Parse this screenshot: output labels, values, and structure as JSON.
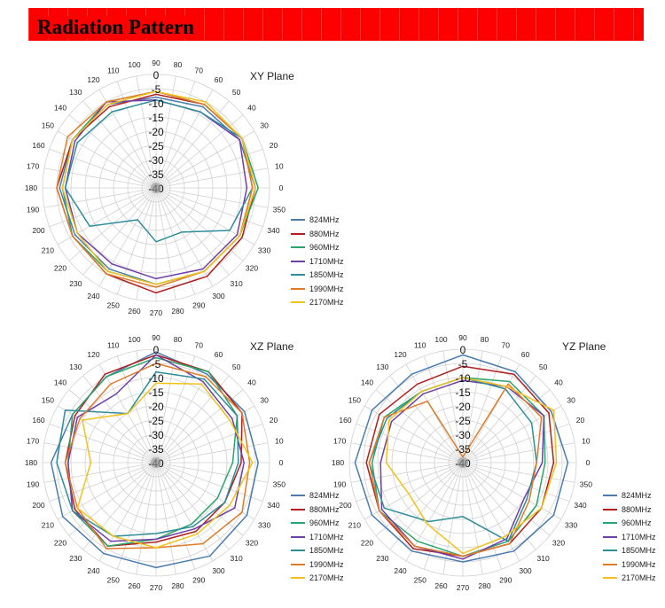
{
  "banner": {
    "title": "Radiation Pattern"
  },
  "legend": [
    {
      "label": "824MHz",
      "color": "#4a7cb0"
    },
    {
      "label": "880MHz",
      "color": "#b11f1f"
    },
    {
      "label": "960MHz",
      "color": "#2aa56b"
    },
    {
      "label": "1710MHz",
      "color": "#6f3fa8"
    },
    {
      "label": "1850MHz",
      "color": "#2d8e9a"
    },
    {
      "label": "1990MHz",
      "color": "#e07b2a"
    },
    {
      "label": "2170MHz",
      "color": "#f2c21b"
    }
  ],
  "chart_data": [
    {
      "type": "polar-line",
      "title": "XY  Plane",
      "r_range": [
        -40,
        0
      ],
      "r_ticks": [
        "0",
        "-5",
        "-10",
        "-15",
        "-20",
        "-25",
        "-30",
        "-35",
        "-40"
      ],
      "angle_ticks": [
        "0",
        "10",
        "20",
        "30",
        "40",
        "50",
        "60",
        "70",
        "80",
        "90",
        "100",
        "110",
        "120",
        "130",
        "140",
        "150",
        "160",
        "170",
        "180",
        "190",
        "200",
        "210",
        "220",
        "230",
        "240",
        "250",
        "260",
        "270",
        "280",
        "290",
        "300",
        "310",
        "320",
        "330",
        "340",
        "350"
      ],
      "angles": [
        0,
        30,
        60,
        90,
        120,
        150,
        180,
        210,
        240,
        270,
        300,
        330
      ],
      "series": [
        {
          "name": "824MHz",
          "values": [
            -5,
            -6,
            -7,
            -8,
            -6,
            -6,
            -6,
            -7,
            -7,
            -6,
            -6,
            -6
          ]
        },
        {
          "name": "880MHz",
          "values": [
            -5,
            -5,
            -6,
            -7,
            -7,
            -6,
            -5,
            -6,
            -5,
            -3,
            -4,
            -5
          ]
        },
        {
          "name": "960MHz",
          "values": [
            -4,
            -5,
            -6,
            -6,
            -5,
            -6,
            -7,
            -6,
            -6,
            -6,
            -6,
            -6
          ]
        },
        {
          "name": "1710MHz",
          "values": [
            -8,
            -6,
            -9,
            -9,
            -5,
            -7,
            -8,
            -8,
            -9,
            -8,
            -7,
            -7
          ]
        },
        {
          "name": "1850MHz",
          "values": [
            -6,
            -5,
            -9,
            -9,
            -9,
            -8,
            -8,
            -13,
            -27,
            -21,
            -22,
            -10
          ]
        },
        {
          "name": "1990MHz",
          "values": [
            -6,
            -5,
            -6,
            -6,
            -5,
            -4,
            -5,
            -6,
            -5,
            -5,
            -6,
            -6
          ]
        },
        {
          "name": "2170MHz",
          "values": [
            -5,
            -5,
            -5,
            -6,
            -6,
            -6,
            -7,
            -8,
            -6,
            -6,
            -6,
            -6
          ]
        }
      ]
    },
    {
      "type": "polar-line",
      "title": "XZ  Plane",
      "r_range": [
        -40,
        0
      ],
      "r_ticks": [
        "0",
        "-5",
        "-10",
        "-15",
        "-20",
        "-25",
        "-30",
        "-35",
        "-40"
      ],
      "angle_ticks": [
        "0",
        "10",
        "20",
        "30",
        "40",
        "50",
        "60",
        "70",
        "80",
        "90",
        "100",
        "110",
        "120",
        "130",
        "140",
        "150",
        "160",
        "170",
        "180",
        "190",
        "200",
        "210",
        "220",
        "230",
        "240",
        "250",
        "260",
        "270",
        "280",
        "290",
        "300",
        "310",
        "320",
        "330",
        "340",
        "350"
      ],
      "angles": [
        0,
        30,
        60,
        90,
        120,
        150,
        180,
        210,
        240,
        270,
        300,
        330
      ],
      "series": [
        {
          "name": "824MHz",
          "values": [
            -4,
            -4,
            -4,
            -1,
            -5,
            -6,
            -3,
            -2,
            -3,
            -3,
            -2,
            -3
          ]
        },
        {
          "name": "880MHz",
          "values": [
            -10,
            -5,
            -3,
            -2,
            -4,
            -7,
            -8,
            -7,
            -6,
            -12,
            -12,
            -12
          ]
        },
        {
          "name": "960MHz",
          "values": [
            -13,
            -7,
            -3,
            -3,
            -5,
            -6,
            -9,
            -6,
            -6,
            -13,
            -15,
            -15
          ]
        },
        {
          "name": "1710MHz",
          "values": [
            -9,
            -9,
            -7,
            -2,
            -12,
            -8,
            -9,
            -6,
            -8,
            -13,
            -13,
            -8
          ]
        },
        {
          "name": "1850MHz",
          "values": [
            -11,
            -7,
            -6,
            -8,
            -20,
            -3,
            -5,
            -6,
            -10,
            -15,
            -14,
            -12
          ]
        },
        {
          "name": "1990MHz",
          "values": [
            -7,
            -5,
            -5,
            -5,
            -8,
            -9,
            -8,
            -8,
            -5,
            -10,
            -7,
            -5
          ]
        },
        {
          "name": "2170MHz",
          "values": [
            -6,
            -10,
            -8,
            -12,
            -20,
            -10,
            -17,
            -8,
            -10,
            -10,
            -11,
            -10
          ]
        }
      ]
    },
    {
      "type": "polar-line",
      "title": "YZ  Plane",
      "r_range": [
        -40,
        0
      ],
      "r_ticks": [
        "0",
        "-5",
        "-10",
        "-15",
        "-20",
        "-25",
        "-30",
        "-35",
        "-40"
      ],
      "angle_ticks": [
        "0",
        "10",
        "20",
        "30",
        "40",
        "50",
        "60",
        "70",
        "80",
        "90",
        "100",
        "110",
        "120",
        "130",
        "140",
        "150",
        "160",
        "170",
        "180",
        "190",
        "200",
        "210",
        "220",
        "230",
        "240",
        "250",
        "260",
        "270",
        "280",
        "290",
        "300",
        "310",
        "320",
        "330",
        "340",
        "350"
      ],
      "angles": [
        0,
        30,
        60,
        90,
        120,
        150,
        180,
        210,
        240,
        270,
        300,
        330
      ],
      "series": [
        {
          "name": "824MHz",
          "values": [
            -3,
            -4,
            -3,
            -2,
            -4,
            -3,
            -2,
            -3,
            -4,
            -5,
            -4,
            -3
          ]
        },
        {
          "name": "880MHz",
          "values": [
            -8,
            -5,
            -4,
            -6,
            -8,
            -6,
            -6,
            -6,
            -5,
            -7,
            -7,
            -8
          ]
        },
        {
          "name": "960MHz",
          "values": [
            -11,
            -7,
            -7,
            -10,
            -11,
            -8,
            -8,
            -6,
            -8,
            -7,
            -8,
            -10
          ]
        },
        {
          "name": "1710MHz",
          "values": [
            -12,
            -7,
            -9,
            -11,
            -12,
            -11,
            -11,
            -7,
            -6,
            -6,
            -9,
            -15
          ]
        },
        {
          "name": "1850MHz",
          "values": [
            -14,
            -12,
            -10,
            -10,
            -11,
            -9,
            -7,
            -8,
            -16,
            -21,
            -8,
            -14
          ]
        },
        {
          "name": "1990MHz",
          "values": [
            -14,
            -8,
            -8,
            -38,
            -15,
            -8,
            -7,
            -6,
            -6,
            -7,
            -7,
            -13
          ]
        },
        {
          "name": "2170MHz",
          "values": [
            -7,
            -3,
            -9,
            -10,
            -11,
            -10,
            -13,
            -18,
            -15,
            -8,
            -10,
            -8
          ]
        }
      ]
    }
  ]
}
